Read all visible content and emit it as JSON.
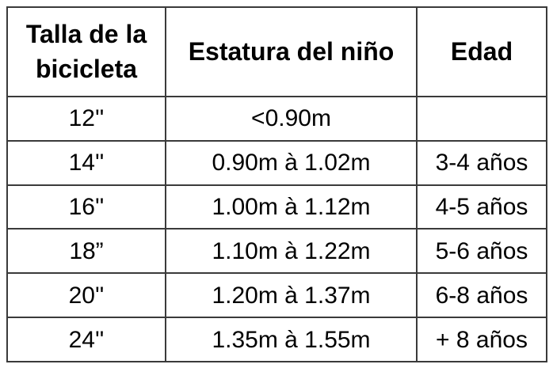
{
  "table": {
    "title": "bike size chart",
    "colors": {
      "background": "#ffffff",
      "text": "#000000",
      "grid_border": "#3a3a3a",
      "outer_border": "#4a4a4a"
    },
    "columns": [
      {
        "label": "Talla de la bicicleta"
      },
      {
        "label": "Estatura del niño"
      },
      {
        "label": "Edad"
      }
    ],
    "rows": [
      {
        "size": "12''",
        "height": "<0.90m",
        "age": ""
      },
      {
        "size": "14''",
        "height": "0.90m à 1.02m",
        "age": "3-4 años"
      },
      {
        "size": "16''",
        "height": "1.00m à 1.12m",
        "age": "4-5 años"
      },
      {
        "size": "18”",
        "height": "1.10m à 1.22m",
        "age": "5-6 años"
      },
      {
        "size": "20''",
        "height": "1.20m à 1.37m",
        "age": "6-8 años"
      },
      {
        "size": "24''",
        "height": "1.35m à 1.55m",
        "age": "+ 8 años"
      }
    ]
  }
}
